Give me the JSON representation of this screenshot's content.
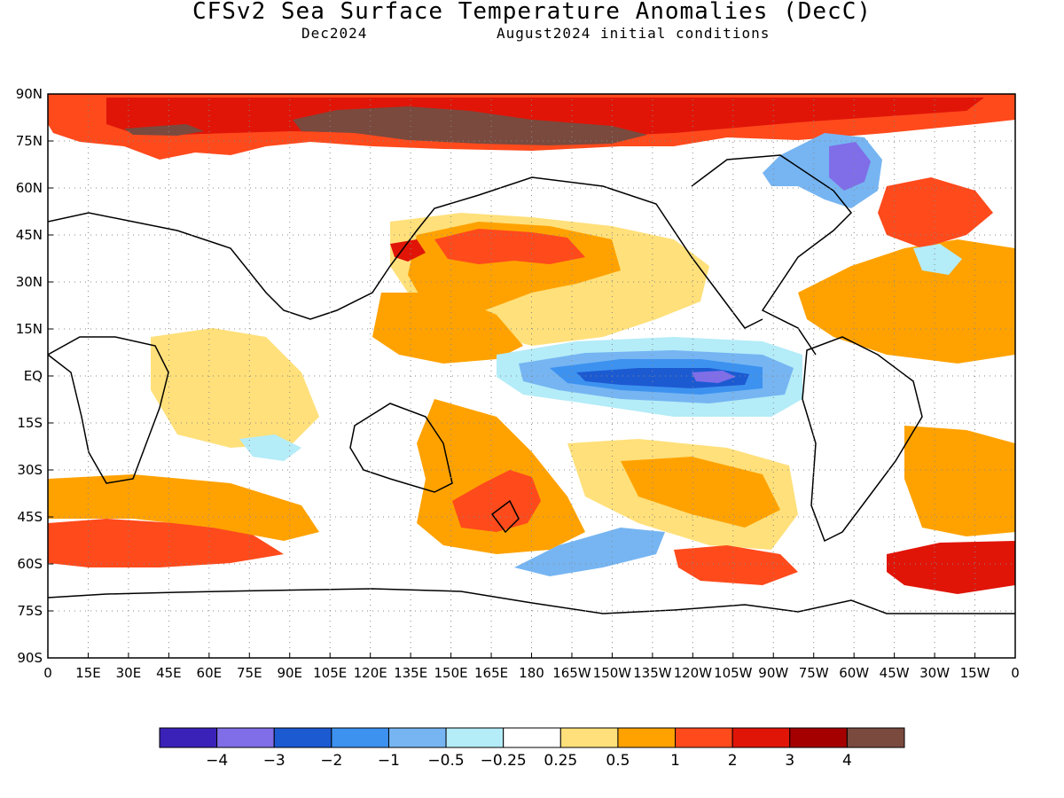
{
  "title": "CFSv2 Sea Surface Temperature Anomalies (DecC)",
  "subtitle_left": "Dec2024",
  "subtitle_right": "August2024 initial conditions",
  "map": {
    "lon_ticks": [
      "0",
      "15E",
      "30E",
      "45E",
      "60E",
      "75E",
      "90E",
      "105E",
      "120E",
      "135E",
      "150E",
      "165E",
      "180",
      "165W",
      "150W",
      "135W",
      "120W",
      "105W",
      "90W",
      "75W",
      "60W",
      "45W",
      "30W",
      "15W",
      "0"
    ],
    "lat_ticks": [
      "90N",
      "75N",
      "60N",
      "45N",
      "30N",
      "15N",
      "EQ",
      "15S",
      "30S",
      "45S",
      "60S",
      "75S",
      "90S"
    ],
    "grid": true,
    "anomaly_regions": [
      {
        "name": "Arctic warm band",
        "level": 2
      },
      {
        "name": "Siberian Arctic max",
        "level": 4
      },
      {
        "name": "Equatorial Pacific cold tongue",
        "level": -1
      },
      {
        "name": "Equatorial Pacific core",
        "level": -2
      },
      {
        "name": "Equatorial Pacific min",
        "level": -3
      },
      {
        "name": "North Pacific warm",
        "level": 1
      },
      {
        "name": "Kuroshio max",
        "level": 2
      },
      {
        "name": "Tasman Sea warm",
        "level": 2
      },
      {
        "name": "Labrador Sea cold",
        "level": -2
      },
      {
        "name": "North Atlantic warm",
        "level": 2
      },
      {
        "name": "South Indian Ocean warm",
        "level": 2
      },
      {
        "name": "South Pacific 60S warm",
        "level": 2
      },
      {
        "name": "South Atlantic 60S warm",
        "level": 2
      }
    ]
  },
  "colorbar": {
    "colors": [
      "#3a22b8",
      "#7f6ee8",
      "#1c5ad2",
      "#3d92f0",
      "#76b5f2",
      "#b4ecf8",
      "#ffffff",
      "#ffe07a",
      "#ffa200",
      "#ff4a1c",
      "#e01508",
      "#a50000",
      "#7a4a3e"
    ],
    "labels": [
      "−4",
      "−3",
      "−2",
      "−1",
      "−0.5",
      "−0.25",
      "0.25",
      "0.5",
      "1",
      "2",
      "3",
      "4"
    ]
  }
}
